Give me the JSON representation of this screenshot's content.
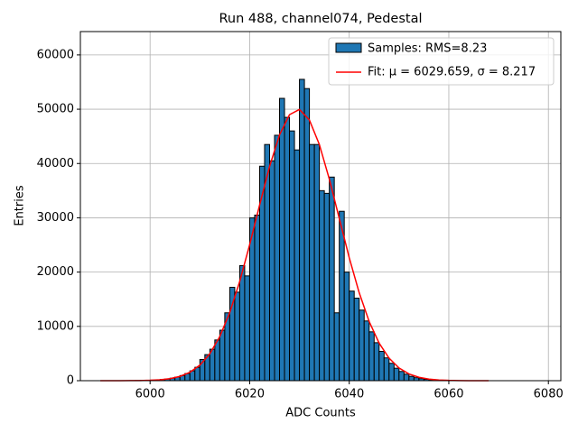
{
  "chart_data": {
    "type": "histogram",
    "title": "Run 488, channel074, Pedestal",
    "x_label": "ADC Counts",
    "y_label": "Entries",
    "bins": [
      5996,
      5997,
      5998,
      5999,
      6000,
      6001,
      6002,
      6003,
      6004,
      6005,
      6006,
      6007,
      6008,
      6009,
      6010,
      6011,
      6012,
      6013,
      6014,
      6015,
      6016,
      6017,
      6018,
      6019,
      6020,
      6021,
      6022,
      6023,
      6024,
      6025,
      6026,
      6027,
      6028,
      6029,
      6030,
      6031,
      6032,
      6033,
      6034,
      6035,
      6036,
      6037,
      6038,
      6039,
      6040,
      6041,
      6042,
      6043,
      6044,
      6045,
      6046,
      6047,
      6048,
      6049,
      6050,
      6051,
      6052,
      6053,
      6054,
      6055,
      6056,
      6057,
      6058,
      6059,
      6060,
      6061
    ],
    "series": [
      {
        "name": "Samples: RMS=8.23",
        "color": "#1f77b4",
        "values": [
          10,
          24,
          38,
          59,
          92,
          141,
          212,
          314,
          460,
          663,
          943,
          1315,
          1810,
          2470,
          3900,
          4800,
          5800,
          7500,
          9300,
          12500,
          17200,
          16300,
          21200,
          19300,
          30000,
          30500,
          39500,
          43500,
          40500,
          45200,
          52000,
          48500,
          46000,
          42500,
          55500,
          53800,
          43500,
          43500,
          35000,
          34500,
          37500,
          12500,
          31200,
          20000,
          16500,
          15200,
          13000,
          11000,
          9000,
          7000,
          5400,
          4200,
          3200,
          2300,
          1700,
          1200,
          800,
          550,
          370,
          240,
          150,
          90,
          55,
          30,
          20
        ]
      },
      {
        "name": "Fit: μ = 6029.659, σ = 8.217",
        "color": "#ff0000",
        "x": [
          5990,
          5992,
          5994,
          5996,
          5998,
          6000,
          6002,
          6004,
          6006,
          6008,
          6010,
          6012,
          6014,
          6016,
          6018,
          6020,
          6022,
          6024,
          6026,
          6028,
          6030,
          6032,
          6034,
          6036,
          6038,
          6040,
          6042,
          6044,
          6046,
          6048,
          6050,
          6052,
          6054,
          6056,
          6058,
          6060,
          6062,
          6064,
          6066,
          6068
        ],
        "values": [
          0,
          1,
          4,
          11,
          30,
          74,
          173,
          380,
          790,
          1550,
          2860,
          4960,
          8130,
          12550,
          18270,
          25050,
          32370,
          39450,
          45280,
          48990,
          49960,
          48010,
          43500,
          37120,
          29870,
          22650,
          16190,
          10900,
          6920,
          4150,
          2340,
          1240,
          620,
          290,
          130,
          55,
          22,
          8,
          3,
          1
        ]
      }
    ],
    "xlim": [
      5986,
      6082.5
    ],
    "ylim": [
      0,
      64300
    ],
    "xticks": [
      6000,
      6020,
      6040,
      6060,
      6080
    ],
    "yticks": [
      0,
      10000,
      20000,
      30000,
      40000,
      50000,
      60000
    ],
    "grid": true,
    "legend": "upper right"
  }
}
